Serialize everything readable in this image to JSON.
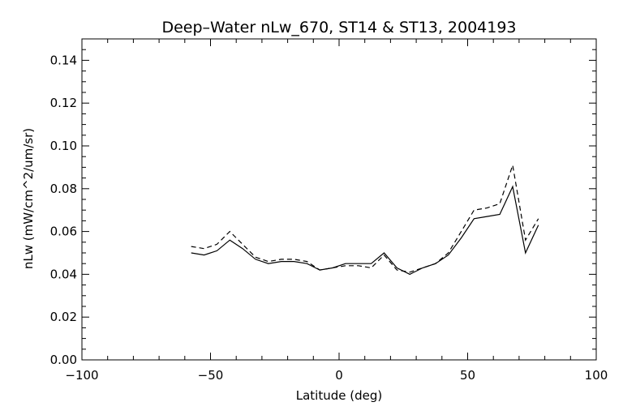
{
  "chart_data": {
    "type": "line",
    "title": "Deep–Water nLw_670, ST14 & ST13, 2004193",
    "xlabel": "Latitude (deg)",
    "ylabel": "nLw (mW/cm^2/um/sr)",
    "xlim": [
      -100,
      100
    ],
    "ylim": [
      0.0,
      0.15
    ],
    "xticks": [
      -100,
      -50,
      0,
      50,
      100
    ],
    "xtick_labels": [
      "−100",
      "−50",
      "0",
      "50",
      "100"
    ],
    "yticks": [
      0.0,
      0.02,
      0.04,
      0.06,
      0.08,
      0.1,
      0.12,
      0.14
    ],
    "ytick_labels": [
      "0.00",
      "0.02",
      "0.04",
      "0.06",
      "0.08",
      "0.10",
      "0.12",
      "0.14"
    ],
    "grid": false,
    "series": [
      {
        "style": "solid",
        "color": "#000000",
        "x": [
          -57.5,
          -52.5,
          -47.5,
          -42.5,
          -37.5,
          -32.5,
          -27.5,
          -22.5,
          -17.5,
          -12.5,
          -7.5,
          -2.5,
          2.5,
          7.5,
          12.5,
          17.5,
          22.5,
          27.5,
          32.5,
          37.5,
          42.5,
          47.5,
          52.5,
          57.5,
          62.5,
          67.5,
          72.5,
          77.5
        ],
        "y": [
          0.05,
          0.049,
          0.051,
          0.056,
          0.052,
          0.047,
          0.045,
          0.046,
          0.046,
          0.045,
          0.042,
          0.043,
          0.045,
          0.045,
          0.045,
          0.05,
          0.043,
          0.04,
          0.043,
          0.045,
          0.049,
          0.057,
          0.066,
          0.067,
          0.068,
          0.081,
          0.05,
          0.063
        ]
      },
      {
        "style": "dashed",
        "color": "#000000",
        "x": [
          -57.5,
          -52.5,
          -47.5,
          -42.5,
          -37.5,
          -32.5,
          -27.5,
          -22.5,
          -17.5,
          -12.5,
          -7.5,
          -2.5,
          2.5,
          7.5,
          12.5,
          17.5,
          22.5,
          27.5,
          32.5,
          37.5,
          42.5,
          47.5,
          52.5,
          57.5,
          62.5,
          67.5,
          72.5,
          77.5
        ],
        "y": [
          0.053,
          0.052,
          0.054,
          0.06,
          0.054,
          0.048,
          0.046,
          0.047,
          0.047,
          0.046,
          0.042,
          0.043,
          0.044,
          0.044,
          0.043,
          0.049,
          0.042,
          0.041,
          0.043,
          0.045,
          0.05,
          0.06,
          0.07,
          0.071,
          0.073,
          0.091,
          0.056,
          0.066
        ]
      }
    ]
  }
}
